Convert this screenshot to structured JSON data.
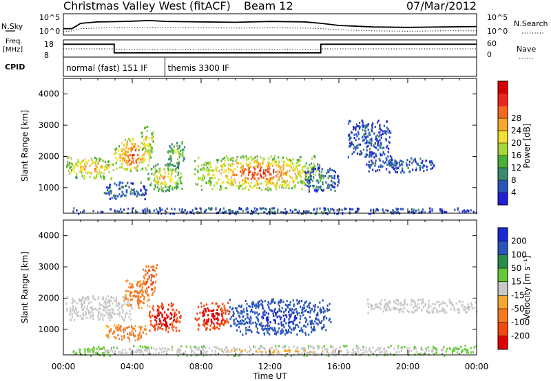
{
  "header": {
    "station": "Christmas Valley West (fitACF)",
    "beam": "Beam 12",
    "date": "07/Mar/2012"
  },
  "colors": {
    "power_scale": [
      "#1f1fd6",
      "#2a55b8",
      "#3c8a6e",
      "#4cae3a",
      "#a6d63a",
      "#f2e032",
      "#f7a828",
      "#f26a22",
      "#e8261e",
      "#d80000"
    ],
    "velocity_scale": [
      "#e00000",
      "#f04a10",
      "#f57a20",
      "#f5a530",
      "#c8c8c8",
      "#66c838",
      "#2c8c4a",
      "#2a55b8",
      "#1a2ad0"
    ]
  },
  "chart_data": [
    {
      "type": "line",
      "panel": "noise",
      "left_label": "N.Sky",
      "right_label": "N.Search",
      "left_ticks": [
        "10^5",
        "10^0"
      ],
      "right_ticks": [
        "10^5",
        "10^0"
      ],
      "x_range_hours": [
        0,
        24
      ],
      "series": [
        {
          "style": "solid",
          "x": [
            0,
            0.5,
            1,
            2,
            3,
            4,
            5,
            6,
            8,
            10,
            12,
            14,
            15,
            16,
            18,
            20,
            22,
            24
          ],
          "y": [
            0.3,
            0.3,
            0.55,
            0.62,
            0.63,
            0.65,
            0.68,
            0.64,
            0.62,
            0.6,
            0.64,
            0.62,
            0.55,
            0.45,
            0.38,
            0.36,
            0.38,
            0.4
          ]
        },
        {
          "style": "dotted",
          "x": [
            0,
            0.5,
            1,
            2,
            3,
            4,
            5,
            6,
            8,
            10,
            12,
            14,
            15,
            16,
            18,
            20,
            22,
            24
          ],
          "y": [
            0.15,
            0.2,
            0.3,
            0.33,
            0.35,
            0.36,
            0.36,
            0.35,
            0.34,
            0.33,
            0.34,
            0.33,
            0.3,
            0.25,
            0.2,
            0.18,
            0.2,
            0.2
          ]
        }
      ]
    },
    {
      "type": "line",
      "panel": "frequency",
      "left_label": "Freq.",
      "left_unit": "[MHz]",
      "right_label": "Nave",
      "left_ticks": [
        "18",
        "8"
      ],
      "right_ticks": [
        "60",
        "0"
      ],
      "x_range_hours": [
        0,
        24
      ],
      "series": [
        {
          "style": "solid",
          "x": [
            0,
            2.95,
            2.95,
            14.95,
            14.95,
            24
          ],
          "y": [
            0.75,
            0.75,
            0.25,
            0.25,
            0.75,
            0.75
          ]
        },
        {
          "style": "dotted",
          "x": [
            0,
            2.95,
            2.95,
            14.95,
            14.95,
            24
          ],
          "y": [
            0.48,
            0.48,
            0.45,
            0.45,
            0.48,
            0.48
          ]
        }
      ]
    },
    {
      "type": "table",
      "panel": "cpid",
      "label": "CPID",
      "segments": [
        {
          "start_hour": 0,
          "end_hour": 5.9,
          "text": "normal (fast) 151 IF"
        },
        {
          "start_hour": 5.9,
          "end_hour": 24,
          "text": "themis 3300 IF"
        }
      ]
    },
    {
      "type": "heatmap",
      "panel": "power",
      "xlabel": "",
      "ylabel": "Slant Range [km]",
      "x_range_hours": [
        0,
        24
      ],
      "y_range_km": [
        180,
        4500
      ],
      "yticks": [
        1000,
        2000,
        3000,
        4000
      ],
      "colorbar": {
        "label": "Power [dB]",
        "ticks": [
          "4",
          "8",
          "12",
          "16",
          "20",
          "24",
          "28"
        ],
        "range": [
          0,
          32
        ]
      },
      "regions": [
        {
          "x": [
            0.1,
            2.9
          ],
          "y": [
            1300,
            2000
          ],
          "value_center": 24,
          "value_edge": 12
        },
        {
          "x": [
            2.9,
            5.1
          ],
          "y": [
            1550,
            2600
          ],
          "value_center": 27,
          "value_edge": 14
        },
        {
          "x": [
            4.5,
            5.2
          ],
          "y": [
            2100,
            3000
          ],
          "value_center": 22,
          "value_edge": 12
        },
        {
          "x": [
            2.3,
            4.8
          ],
          "y": [
            650,
            1200
          ],
          "value_center": 8,
          "value_edge": 4
        },
        {
          "x": [
            4.8,
            6.9
          ],
          "y": [
            900,
            1800
          ],
          "value_center": 22,
          "value_edge": 10
        },
        {
          "x": [
            6.0,
            7.0
          ],
          "y": [
            1700,
            2500
          ],
          "value_center": 16,
          "value_edge": 8
        },
        {
          "x": [
            7.6,
            15.0
          ],
          "y": [
            950,
            2050
          ],
          "value_center": 28,
          "value_edge": 12
        },
        {
          "x": [
            14.0,
            16.0
          ],
          "y": [
            900,
            1700
          ],
          "value_center": 10,
          "value_edge": 4
        },
        {
          "x": [
            17.5,
            21.5
          ],
          "y": [
            1500,
            2000
          ],
          "value_center": 6,
          "value_edge": 4
        },
        {
          "x": [
            16.5,
            19.0
          ],
          "y": [
            2000,
            3200
          ],
          "value_center": 5,
          "value_edge": 4
        },
        {
          "x": [
            0.5,
            24.0
          ],
          "y": [
            180,
            380
          ],
          "value_center": 6,
          "value_edge": 4
        }
      ]
    },
    {
      "type": "heatmap",
      "panel": "velocity",
      "xlabel": "Time UT",
      "ylabel": "Slant Range [km]",
      "x_range_hours": [
        0,
        24
      ],
      "y_range_km": [
        180,
        4500
      ],
      "yticks": [
        1000,
        2000,
        3000,
        4000
      ],
      "xticks": [
        "00:00",
        "04:00",
        "08:00",
        "12:00",
        "16:00",
        "20:00",
        "00:00"
      ],
      "colorbar": {
        "label": "Velocity [m s⁻¹]",
        "ticks": [
          "-200",
          "-100",
          "-50",
          "-15",
          "15",
          "50",
          "100",
          "200"
        ],
        "range": [
          -250,
          250
        ]
      },
      "regions": [
        {
          "x": [
            0.1,
            4.0
          ],
          "y": [
            1300,
            2100
          ],
          "value_center": 0,
          "value_edge": 0
        },
        {
          "x": [
            3.5,
            5.0
          ],
          "y": [
            1700,
            2600
          ],
          "value_center": -60,
          "value_edge": -30
        },
        {
          "x": [
            4.6,
            5.4
          ],
          "y": [
            2100,
            3100
          ],
          "value_center": -120,
          "value_edge": -60
        },
        {
          "x": [
            2.4,
            4.8
          ],
          "y": [
            650,
            1200
          ],
          "value_center": -60,
          "value_edge": -30
        },
        {
          "x": [
            4.9,
            6.8
          ],
          "y": [
            950,
            1900
          ],
          "value_center": -200,
          "value_edge": -120
        },
        {
          "x": [
            7.6,
            9.6
          ],
          "y": [
            1000,
            1900
          ],
          "value_center": -200,
          "value_edge": -120
        },
        {
          "x": [
            9.6,
            15.5
          ],
          "y": [
            850,
            2000
          ],
          "value_center": 190,
          "value_edge": 80
        },
        {
          "x": [
            17.5,
            24.0
          ],
          "y": [
            1550,
            2000
          ],
          "value_center": 0,
          "value_edge": 0
        },
        {
          "x": [
            0.5,
            24.0
          ],
          "y": [
            180,
            500
          ],
          "value_center": -30,
          "value_edge": 20
        }
      ]
    }
  ]
}
